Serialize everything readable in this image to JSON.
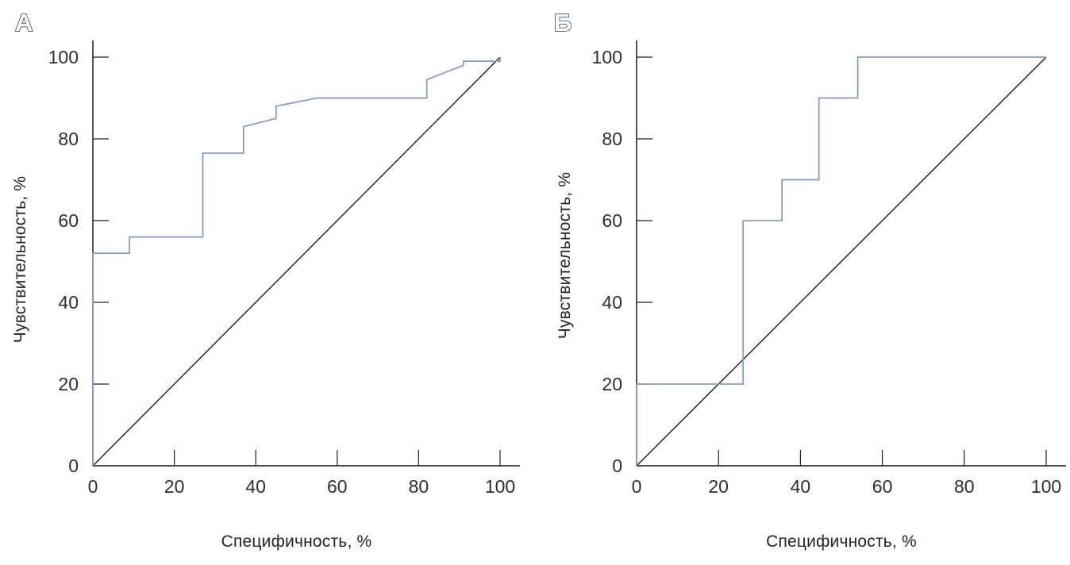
{
  "figure": {
    "background": "#ffffff",
    "panel_labels": [
      "А",
      "Б"
    ],
    "style": {
      "curve_color": "#8b9ac1",
      "reference_line_color": "#1d1d1d",
      "axis_color": "#1d1d1d",
      "tick_text_color": "#2d2d33"
    }
  },
  "chart_data": [
    {
      "type": "line",
      "subtype": "roc-step-curve",
      "title": "А",
      "xlabel": "Специфичность, %",
      "ylabel": "Чувствительность, %",
      "xlim": [
        0,
        100
      ],
      "ylim": [
        0,
        100
      ],
      "x_ticks": [
        0,
        20,
        40,
        60,
        80,
        100
      ],
      "y_ticks": [
        0,
        20,
        40,
        60,
        80,
        100
      ],
      "grid": false,
      "legend": false,
      "series": [
        {
          "name": "ROC curve",
          "color": "#8b9ac1",
          "points": [
            [
              0,
              0
            ],
            [
              0,
              52
            ],
            [
              9,
              52
            ],
            [
              9,
              56
            ],
            [
              27,
              56
            ],
            [
              27,
              76.5
            ],
            [
              37,
              76.5
            ],
            [
              37,
              83
            ],
            [
              45,
              85
            ],
            [
              45,
              88
            ],
            [
              55,
              90
            ],
            [
              82,
              90
            ],
            [
              82,
              94.5
            ],
            [
              91,
              98
            ],
            [
              91,
              99
            ],
            [
              100,
              99
            ],
            [
              100,
              100
            ]
          ]
        },
        {
          "name": "reference diagonal",
          "color": "#1d1d1d",
          "points": [
            [
              0,
              0
            ],
            [
              100,
              100
            ]
          ]
        }
      ]
    },
    {
      "type": "line",
      "subtype": "roc-step-curve",
      "title": "Б",
      "xlabel": "Специфичность, %",
      "ylabel": "Чувствительность, %",
      "xlim": [
        0,
        100
      ],
      "ylim": [
        0,
        100
      ],
      "x_ticks": [
        0,
        20,
        40,
        60,
        80,
        100
      ],
      "y_ticks": [
        0,
        20,
        40,
        60,
        80,
        100
      ],
      "grid": false,
      "legend": false,
      "series": [
        {
          "name": "ROC curve",
          "color": "#8b9ac1",
          "points": [
            [
              0,
              0
            ],
            [
              0,
              20
            ],
            [
              26,
              20
            ],
            [
              26,
              60
            ],
            [
              35.5,
              60
            ],
            [
              35.5,
              70
            ],
            [
              44.5,
              70
            ],
            [
              44.5,
              90
            ],
            [
              54,
              90
            ],
            [
              54,
              100
            ],
            [
              100,
              100
            ]
          ]
        },
        {
          "name": "reference diagonal",
          "color": "#1d1d1d",
          "points": [
            [
              0,
              0
            ],
            [
              100,
              100
            ]
          ]
        }
      ]
    }
  ]
}
